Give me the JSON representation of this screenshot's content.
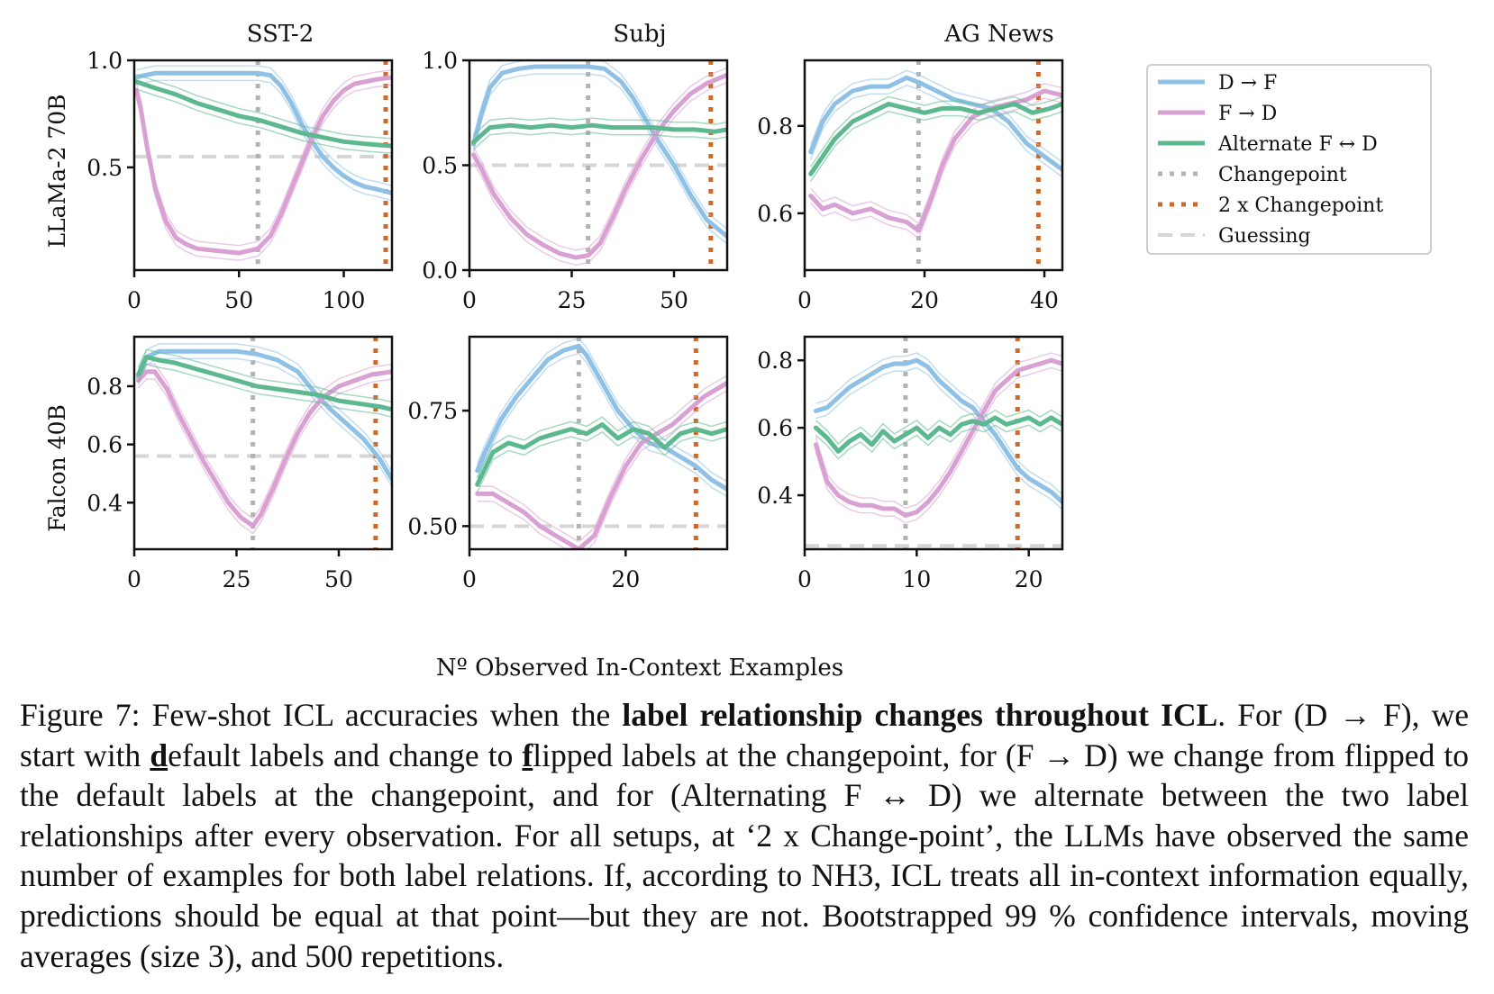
{
  "colors": {
    "d_to_f": "#8fc1e6",
    "f_to_d": "#d9a0d3",
    "alternate": "#5cb88f",
    "changepoint": "#b3b3b3",
    "two_x_changepoint": "#cc6a2c",
    "guessing": "#d6d6d6"
  },
  "figure": {
    "xlabel": "Nº Observed In-Context Examples",
    "row_labels": [
      "LLaMa-2 70B",
      "Falcon 40B"
    ],
    "col_titles": [
      "SST-2",
      "Subj",
      "AG News"
    ],
    "legend": {
      "placement": "right of top row",
      "entries": [
        "D → F",
        "F → D",
        "Alternate F ↔ D",
        "Changepoint",
        "2 x Changepoint",
        "Guessing"
      ]
    }
  },
  "chart_data": [
    {
      "type": "line",
      "model": "LLaMa-2 70B",
      "dataset": "SST-2",
      "xlim": [
        0,
        123
      ],
      "ylim": [
        0.02,
        1.0
      ],
      "xticks": [
        0,
        50,
        100
      ],
      "yticks": [
        0.5,
        1.0
      ],
      "ytick_labels": [
        "0.5",
        "1.0"
      ],
      "changepoint": 59,
      "two_x_changepoint": 120,
      "guessing": 0.55,
      "series": [
        {
          "name": "D → F",
          "x": [
            1,
            5,
            10,
            20,
            30,
            40,
            50,
            59,
            65,
            70,
            75,
            80,
            85,
            90,
            95,
            100,
            105,
            110,
            115,
            123
          ],
          "y": [
            0.92,
            0.93,
            0.94,
            0.94,
            0.94,
            0.94,
            0.94,
            0.94,
            0.93,
            0.88,
            0.8,
            0.7,
            0.62,
            0.55,
            0.5,
            0.46,
            0.43,
            0.41,
            0.4,
            0.38
          ]
        },
        {
          "name": "F → D",
          "x": [
            1,
            3,
            6,
            10,
            15,
            20,
            25,
            30,
            40,
            50,
            59,
            65,
            70,
            75,
            80,
            85,
            90,
            95,
            100,
            105,
            110,
            115,
            123
          ],
          "y": [
            0.86,
            0.78,
            0.6,
            0.4,
            0.25,
            0.17,
            0.14,
            0.12,
            0.11,
            0.1,
            0.12,
            0.18,
            0.28,
            0.4,
            0.52,
            0.64,
            0.74,
            0.81,
            0.86,
            0.89,
            0.9,
            0.91,
            0.92
          ]
        },
        {
          "name": "Alternate F ↔ D",
          "x": [
            1,
            10,
            20,
            30,
            40,
            50,
            60,
            70,
            80,
            90,
            100,
            110,
            123
          ],
          "y": [
            0.9,
            0.87,
            0.84,
            0.8,
            0.77,
            0.74,
            0.72,
            0.69,
            0.66,
            0.64,
            0.62,
            0.61,
            0.6
          ]
        }
      ]
    },
    {
      "type": "line",
      "model": "LLaMa-2 70B",
      "dataset": "Subj",
      "xlim": [
        0,
        63
      ],
      "ylim": [
        0.0,
        1.0
      ],
      "xticks": [
        0,
        25,
        50
      ],
      "yticks": [
        0.0,
        0.5,
        1.0
      ],
      "ytick_labels": [
        "0.0",
        "0.5",
        "1.0"
      ],
      "changepoint": 29,
      "two_x_changepoint": 59,
      "guessing": 0.5,
      "series": [
        {
          "name": "D → F",
          "x": [
            1,
            3,
            5,
            8,
            12,
            16,
            20,
            25,
            29,
            33,
            37,
            40,
            43,
            46,
            50,
            54,
            58,
            63
          ],
          "y": [
            0.6,
            0.75,
            0.87,
            0.94,
            0.96,
            0.97,
            0.97,
            0.97,
            0.97,
            0.96,
            0.9,
            0.82,
            0.72,
            0.62,
            0.5,
            0.36,
            0.24,
            0.16
          ]
        },
        {
          "name": "F → D",
          "x": [
            1,
            3,
            6,
            10,
            14,
            18,
            22,
            26,
            29,
            32,
            35,
            38,
            42,
            46,
            50,
            54,
            58,
            63
          ],
          "y": [
            0.55,
            0.48,
            0.36,
            0.25,
            0.17,
            0.12,
            0.08,
            0.06,
            0.07,
            0.13,
            0.25,
            0.38,
            0.53,
            0.66,
            0.76,
            0.84,
            0.89,
            0.93
          ]
        },
        {
          "name": "Alternate F ↔ D",
          "x": [
            1,
            5,
            10,
            15,
            20,
            25,
            30,
            35,
            40,
            45,
            50,
            55,
            60,
            63
          ],
          "y": [
            0.61,
            0.68,
            0.69,
            0.68,
            0.69,
            0.68,
            0.69,
            0.68,
            0.68,
            0.68,
            0.67,
            0.67,
            0.66,
            0.67
          ]
        }
      ]
    },
    {
      "type": "line",
      "model": "LLaMa-2 70B",
      "dataset": "AG News",
      "xlim": [
        0,
        43
      ],
      "ylim": [
        0.47,
        0.95
      ],
      "xticks": [
        0,
        20,
        40
      ],
      "yticks": [
        0.6,
        0.8
      ],
      "ytick_labels": [
        "0.6",
        "0.8"
      ],
      "changepoint": 19,
      "two_x_changepoint": 39,
      "guessing": null,
      "series": [
        {
          "name": "D → F",
          "x": [
            1,
            3,
            5,
            8,
            11,
            14,
            17,
            19,
            22,
            25,
            28,
            31,
            34,
            37,
            40,
            43
          ],
          "y": [
            0.74,
            0.81,
            0.85,
            0.88,
            0.89,
            0.89,
            0.91,
            0.9,
            0.88,
            0.86,
            0.85,
            0.84,
            0.81,
            0.76,
            0.73,
            0.7
          ]
        },
        {
          "name": "F → D",
          "x": [
            1,
            3,
            5,
            8,
            11,
            14,
            17,
            19,
            21,
            23,
            25,
            28,
            31,
            34,
            37,
            40,
            43
          ],
          "y": [
            0.64,
            0.61,
            0.62,
            0.6,
            0.61,
            0.59,
            0.58,
            0.56,
            0.63,
            0.71,
            0.77,
            0.82,
            0.84,
            0.85,
            0.86,
            0.88,
            0.87
          ]
        },
        {
          "name": "Alternate F ↔ D",
          "x": [
            1,
            3,
            5,
            8,
            11,
            14,
            17,
            20,
            23,
            26,
            29,
            32,
            35,
            38,
            41,
            43
          ],
          "y": [
            0.69,
            0.73,
            0.77,
            0.81,
            0.83,
            0.85,
            0.84,
            0.83,
            0.84,
            0.84,
            0.83,
            0.84,
            0.85,
            0.83,
            0.84,
            0.85
          ]
        }
      ]
    },
    {
      "type": "line",
      "model": "Falcon 40B",
      "dataset": "SST-2",
      "xlim": [
        0,
        63
      ],
      "ylim": [
        0.24,
        0.97
      ],
      "xticks": [
        0,
        25,
        50
      ],
      "yticks": [
        0.4,
        0.6,
        0.8
      ],
      "ytick_labels": [
        "0.4",
        "0.6",
        "0.8"
      ],
      "changepoint": 29,
      "two_x_changepoint": 59,
      "guessing": 0.56,
      "series": [
        {
          "name": "D → F",
          "x": [
            1,
            3,
            6,
            10,
            15,
            20,
            25,
            30,
            35,
            40,
            44,
            48,
            52,
            56,
            60,
            63
          ],
          "y": [
            0.83,
            0.9,
            0.92,
            0.92,
            0.92,
            0.92,
            0.92,
            0.91,
            0.89,
            0.85,
            0.78,
            0.72,
            0.67,
            0.62,
            0.55,
            0.48
          ]
        },
        {
          "name": "F → D",
          "x": [
            1,
            3,
            5,
            8,
            11,
            14,
            17,
            20,
            23,
            26,
            29,
            31,
            34,
            37,
            40,
            43,
            46,
            50,
            54,
            58,
            63
          ],
          "y": [
            0.82,
            0.85,
            0.85,
            0.79,
            0.7,
            0.62,
            0.54,
            0.47,
            0.4,
            0.35,
            0.32,
            0.36,
            0.45,
            0.55,
            0.64,
            0.71,
            0.76,
            0.8,
            0.82,
            0.84,
            0.85
          ]
        },
        {
          "name": "Alternate F ↔ D",
          "x": [
            1,
            3,
            6,
            10,
            15,
            20,
            25,
            30,
            35,
            40,
            45,
            50,
            55,
            60,
            63
          ],
          "y": [
            0.84,
            0.9,
            0.89,
            0.88,
            0.86,
            0.84,
            0.82,
            0.8,
            0.79,
            0.78,
            0.77,
            0.75,
            0.74,
            0.73,
            0.72
          ]
        }
      ]
    },
    {
      "type": "line",
      "model": "Falcon 40B",
      "dataset": "Subj",
      "xlim": [
        0,
        33
      ],
      "ylim": [
        0.45,
        0.91
      ],
      "xticks": [
        0,
        20
      ],
      "yticks": [
        0.5,
        0.75
      ],
      "ytick_labels": [
        "0.50",
        "0.75"
      ],
      "changepoint": 14,
      "two_x_changepoint": 29,
      "guessing": 0.5,
      "series": [
        {
          "name": "D → F",
          "x": [
            1,
            2,
            4,
            6,
            8,
            10,
            12,
            14,
            15,
            17,
            19,
            21,
            23,
            25,
            27,
            29,
            31,
            33
          ],
          "y": [
            0.62,
            0.66,
            0.73,
            0.78,
            0.82,
            0.86,
            0.88,
            0.89,
            0.87,
            0.81,
            0.75,
            0.71,
            0.68,
            0.67,
            0.65,
            0.63,
            0.6,
            0.58
          ]
        },
        {
          "name": "F → D",
          "x": [
            1,
            3,
            5,
            7,
            9,
            11,
            13,
            14,
            16,
            18,
            20,
            22,
            24,
            26,
            28,
            30,
            33
          ],
          "y": [
            0.57,
            0.57,
            0.55,
            0.53,
            0.5,
            0.48,
            0.46,
            0.45,
            0.48,
            0.56,
            0.63,
            0.68,
            0.7,
            0.72,
            0.75,
            0.78,
            0.81
          ]
        },
        {
          "name": "Alternate F ↔ D",
          "x": [
            1,
            3,
            5,
            7,
            9,
            11,
            13,
            15,
            17,
            19,
            21,
            23,
            25,
            27,
            29,
            31,
            33
          ],
          "y": [
            0.59,
            0.66,
            0.68,
            0.67,
            0.69,
            0.7,
            0.71,
            0.7,
            0.72,
            0.69,
            0.71,
            0.7,
            0.67,
            0.7,
            0.71,
            0.7,
            0.71
          ]
        }
      ]
    },
    {
      "type": "line",
      "model": "Falcon 40B",
      "dataset": "AG News",
      "xlim": [
        0,
        23
      ],
      "ylim": [
        0.24,
        0.87
      ],
      "xticks": [
        0,
        10,
        20
      ],
      "yticks": [
        0.4,
        0.6,
        0.8
      ],
      "ytick_labels": [
        "0.4",
        "0.6",
        "0.8"
      ],
      "changepoint": 9,
      "two_x_changepoint": 19,
      "guessing": 0.25,
      "series": [
        {
          "name": "D → F",
          "x": [
            1,
            2,
            3,
            4,
            5,
            6,
            7,
            8,
            9,
            10,
            11,
            12,
            13,
            14,
            15,
            16,
            17,
            18,
            19,
            20,
            21,
            22,
            23
          ],
          "y": [
            0.65,
            0.66,
            0.69,
            0.72,
            0.74,
            0.76,
            0.78,
            0.79,
            0.79,
            0.8,
            0.78,
            0.74,
            0.71,
            0.68,
            0.66,
            0.62,
            0.58,
            0.53,
            0.48,
            0.45,
            0.43,
            0.41,
            0.38
          ]
        },
        {
          "name": "F → D",
          "x": [
            1,
            2,
            3,
            4,
            5,
            6,
            7,
            8,
            9,
            10,
            11,
            12,
            13,
            14,
            15,
            16,
            17,
            18,
            19,
            20,
            21,
            22,
            23
          ],
          "y": [
            0.55,
            0.44,
            0.4,
            0.38,
            0.37,
            0.37,
            0.36,
            0.36,
            0.34,
            0.35,
            0.38,
            0.42,
            0.47,
            0.53,
            0.59,
            0.65,
            0.71,
            0.74,
            0.77,
            0.78,
            0.79,
            0.8,
            0.79
          ]
        },
        {
          "name": "Alternate F ↔ D",
          "x": [
            1,
            2,
            3,
            4,
            5,
            6,
            7,
            8,
            9,
            10,
            11,
            12,
            13,
            14,
            15,
            16,
            17,
            18,
            19,
            20,
            21,
            22,
            23
          ],
          "y": [
            0.6,
            0.57,
            0.53,
            0.56,
            0.58,
            0.55,
            0.59,
            0.56,
            0.58,
            0.6,
            0.57,
            0.6,
            0.58,
            0.61,
            0.62,
            0.61,
            0.63,
            0.61,
            0.62,
            0.63,
            0.61,
            0.63,
            0.61
          ]
        }
      ]
    }
  ],
  "caption": {
    "figure_label": "Figure 7:",
    "t1": " Few-shot ICL accuracies when the ",
    "b1": "label relationship changes throughout ICL",
    "t2": ". For (D → F), we start with ",
    "d_letter": "d",
    "t3": "efault labels and change to ",
    "f_letter": "f",
    "t4": "lipped labels at the changepoint, for (F → D) we change from flipped to the default labels at the changepoint, and for (Alternating F ↔ D) we alternate between the two label relationships after every observation. For all setups, at ‘2 x Change-point’, the LLMs have observed the same number of examples for both label relations. If, according to NH3, ICL treats all in-context information equally, predictions should be equal at that point—but they are not. Bootstrapped 99 % confidence intervals, moving averages (size 3), and 500 repetitions."
  }
}
